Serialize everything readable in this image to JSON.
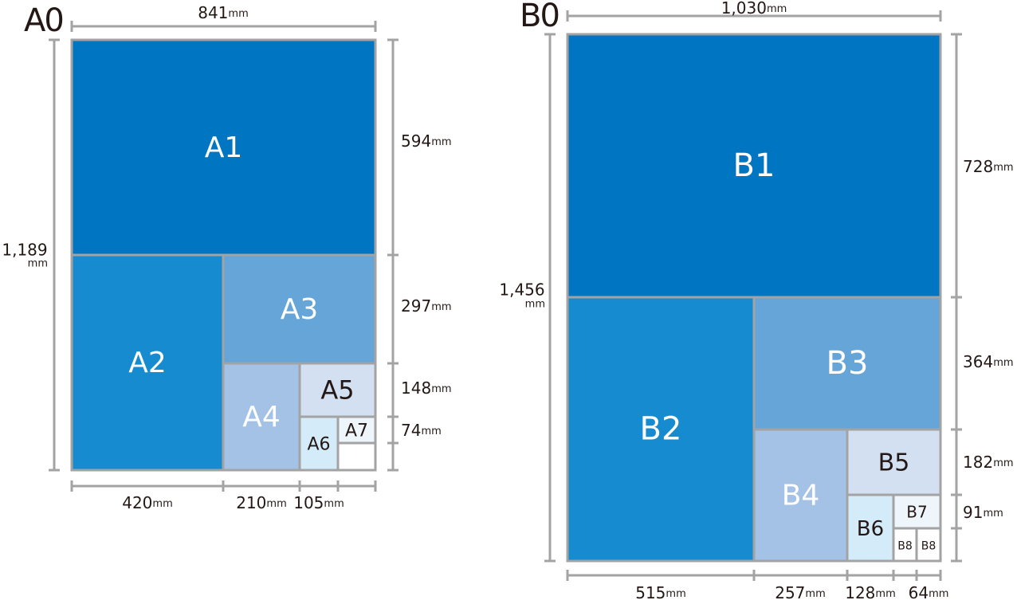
{
  "a_series": {
    "title": "A0",
    "width": {
      "value": "841",
      "unit": "mm"
    },
    "height": {
      "value": "1,189",
      "unit": "mm"
    },
    "sheets": [
      "A1",
      "A2",
      "A3",
      "A4",
      "A5",
      "A6",
      "A7"
    ],
    "right_dims": [
      {
        "value": "594",
        "unit": "mm"
      },
      {
        "value": "297",
        "unit": "mm"
      },
      {
        "value": "148",
        "unit": "mm"
      },
      {
        "value": "74",
        "unit": "mm"
      }
    ],
    "bottom_dims": [
      {
        "value": "420",
        "unit": "mm"
      },
      {
        "value": "210",
        "unit": "mm"
      },
      {
        "value": "105",
        "unit": "mm"
      }
    ]
  },
  "b_series": {
    "title": "B0",
    "width": {
      "value": "1,030",
      "unit": "mm"
    },
    "height": {
      "value": "1,456",
      "unit": "mm"
    },
    "sheets": [
      "B1",
      "B2",
      "B3",
      "B4",
      "B5",
      "B6",
      "B7",
      "B8",
      "B8"
    ],
    "right_dims": [
      {
        "value": "728",
        "unit": "mm"
      },
      {
        "value": "364",
        "unit": "mm"
      },
      {
        "value": "182",
        "unit": "mm"
      },
      {
        "value": "91",
        "unit": "mm"
      }
    ],
    "bottom_dims": [
      {
        "value": "515",
        "unit": "mm"
      },
      {
        "value": "257",
        "unit": "mm"
      },
      {
        "value": "128",
        "unit": "mm"
      },
      {
        "value": "64",
        "unit": "mm"
      }
    ]
  }
}
